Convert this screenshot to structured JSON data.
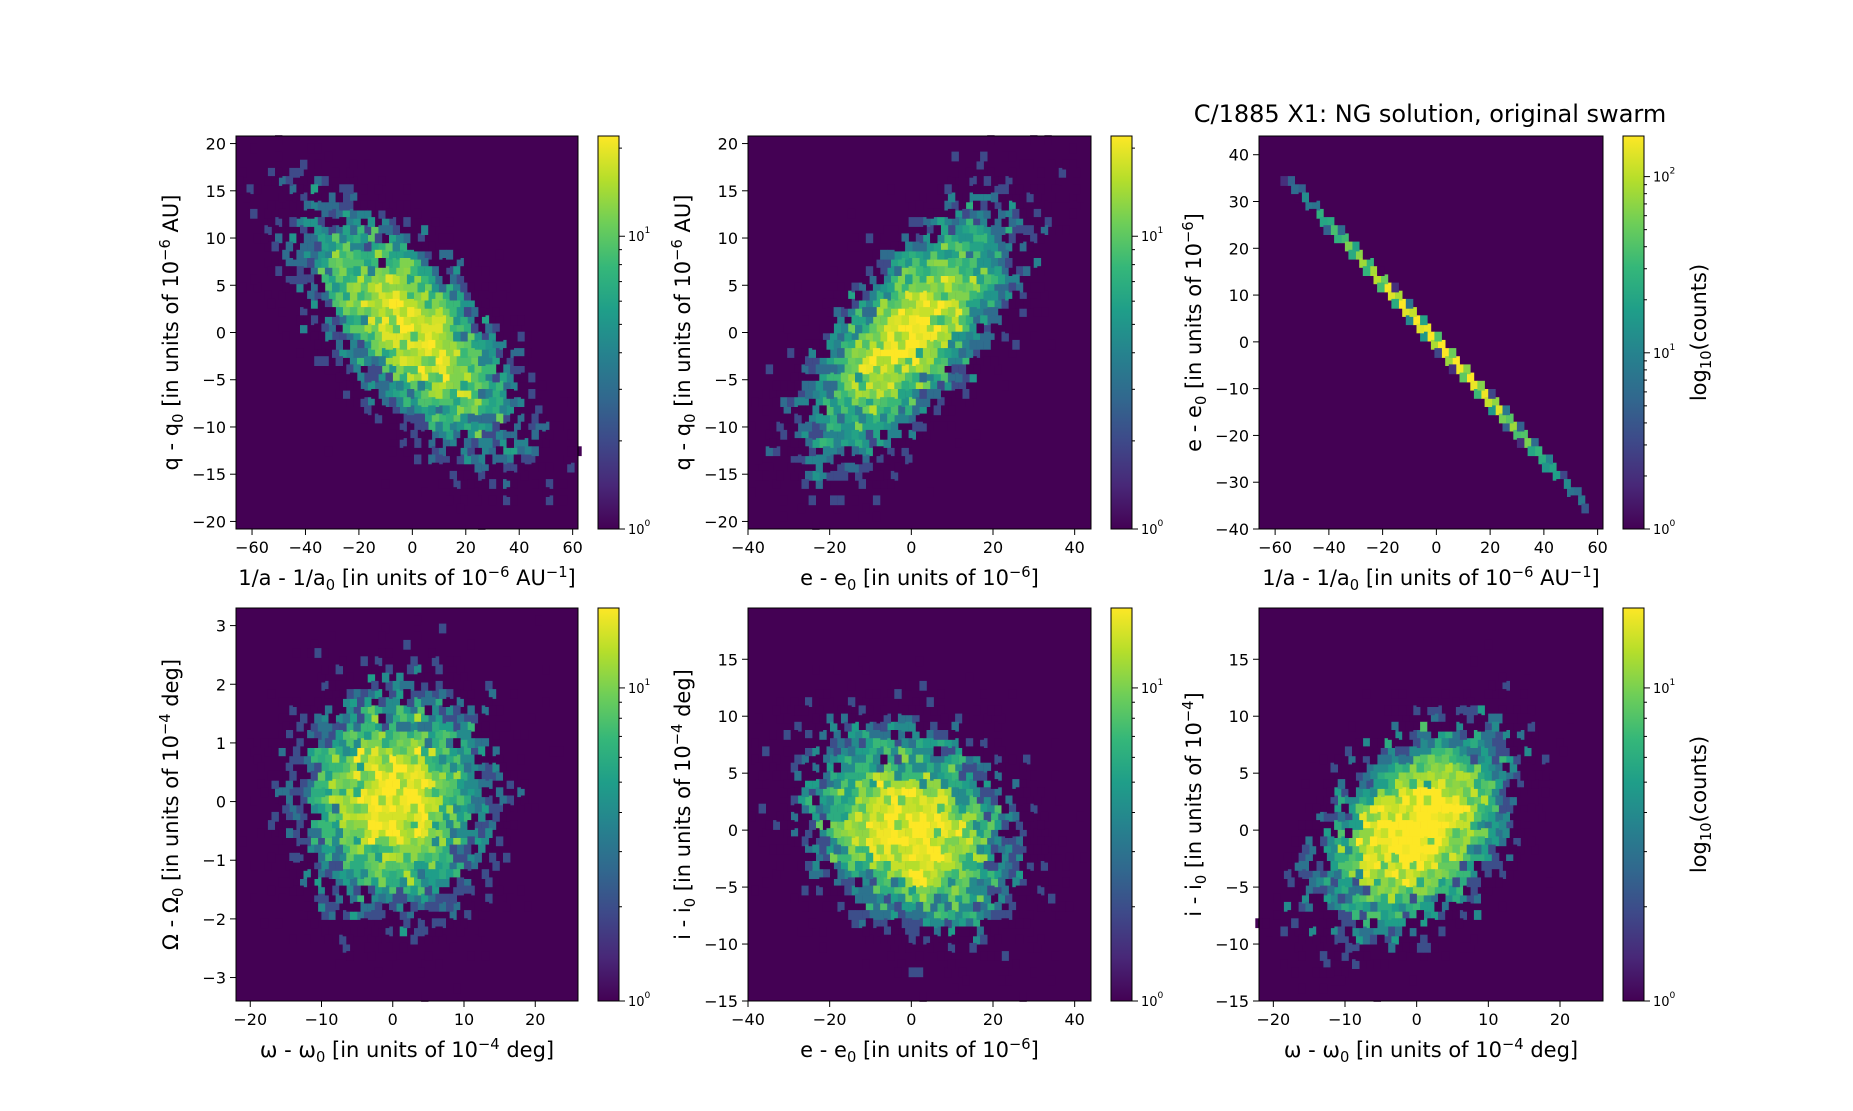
{
  "figure": {
    "title": "C/1885 X1:  NG solution, original swarm",
    "colorbar_label": "log10(counts)"
  },
  "colors": {
    "background": "#440154",
    "cmap": [
      "#440154",
      "#482878",
      "#3e4989",
      "#31688e",
      "#26828e",
      "#1f9e89",
      "#35b779",
      "#6ece58",
      "#b5de2b",
      "#fde725"
    ]
  },
  "chart_data": [
    {
      "type": "heatmap",
      "name": "q_vs_inv_a",
      "xlabel": "1/a - 1/a0 [in units of 10^-6 AU^-1]",
      "ylabel": "q - q0 [in units of 10^-6 AU]",
      "xlim": [
        -66,
        62
      ],
      "ylim": [
        -20.8,
        20.8
      ],
      "xticks": [
        -60,
        -40,
        -20,
        0,
        20,
        40,
        60
      ],
      "yticks": [
        -20,
        -15,
        -10,
        -5,
        0,
        5,
        10,
        15,
        20
      ],
      "distribution": {
        "sx": 20,
        "sy": 6.5,
        "rho": -0.7,
        "n": 5000
      },
      "colorbar": {
        "min": 1,
        "max": 22,
        "ticks": [
          1,
          10
        ],
        "tick_labels": [
          "10^0",
          "10^1"
        ],
        "label": ""
      }
    },
    {
      "type": "heatmap",
      "name": "q_vs_e",
      "xlabel": "e - e0 [in units of 10^-6]",
      "ylabel": "q - q0 [in units of 10^-6 AU]",
      "xlim": [
        -40,
        44
      ],
      "ylim": [
        -20.8,
        20.8
      ],
      "xticks": [
        -40,
        -20,
        0,
        20,
        40
      ],
      "yticks": [
        -20,
        -15,
        -10,
        -5,
        0,
        5,
        10,
        15,
        20
      ],
      "distribution": {
        "sx": 12.5,
        "sy": 6.5,
        "rho": 0.7,
        "n": 5000
      },
      "colorbar": {
        "min": 1,
        "max": 22,
        "ticks": [
          1,
          10
        ],
        "tick_labels": [
          "10^0",
          "10^1"
        ],
        "label": ""
      }
    },
    {
      "type": "heatmap",
      "name": "e_vs_inv_a",
      "xlabel": "1/a - 1/a0 [in units of 10^-6 AU^-1]",
      "ylabel": "e - e0 [in units of 10^-6]",
      "xlim": [
        -66,
        62
      ],
      "ylim": [
        -40,
        44
      ],
      "xticks": [
        -60,
        -40,
        -20,
        0,
        20,
        40,
        60
      ],
      "yticks": [
        -40,
        -30,
        -20,
        -10,
        0,
        10,
        20,
        30,
        40
      ],
      "line": {
        "x_from": -56,
        "x_to": 56,
        "slope": -0.63,
        "sx": 20,
        "n": 5000
      },
      "colorbar": {
        "min": 1,
        "max": 170,
        "ticks": [
          1,
          10,
          100
        ],
        "tick_labels": [
          "10^0",
          "10^1",
          "10^2"
        ],
        "label": "log10(counts)"
      }
    },
    {
      "type": "heatmap",
      "name": "node_vs_peri",
      "xlabel": "ω - ω0 [in units of 10^-4 deg]",
      "ylabel": "Ω - Ω0 [in units of 10^-4 deg]",
      "xlim": [
        -22,
        26
      ],
      "ylim": [
        -3.4,
        3.3
      ],
      "xticks": [
        -20,
        -10,
        0,
        10,
        20
      ],
      "yticks": [
        -3,
        -2,
        -1,
        0,
        1,
        2,
        3
      ],
      "distribution": {
        "sx": 6.5,
        "sy": 0.95,
        "rho": 0.0,
        "n": 5000
      },
      "colorbar": {
        "min": 1,
        "max": 18,
        "ticks": [
          1,
          10
        ],
        "tick_labels": [
          "10^0",
          "10^1"
        ],
        "label": ""
      }
    },
    {
      "type": "heatmap",
      "name": "inc_vs_e",
      "xlabel": "e - e0 [in units of 10^-6]",
      "ylabel": "i - i0 [in units of 10^-4 deg]",
      "xlim": [
        -40,
        44
      ],
      "ylim": [
        -15,
        19.5
      ],
      "xticks": [
        -40,
        -20,
        0,
        20,
        40
      ],
      "yticks": [
        -15,
        -10,
        -5,
        0,
        5,
        10,
        15
      ],
      "distribution": {
        "sx": 12.5,
        "sy": 4.3,
        "rho": -0.25,
        "n": 5000
      },
      "colorbar": {
        "min": 1,
        "max": 18,
        "ticks": [
          1,
          10
        ],
        "tick_labels": [
          "10^0",
          "10^1"
        ],
        "label": ""
      }
    },
    {
      "type": "heatmap",
      "name": "inc_vs_peri",
      "xlabel": "ω - ω0 [in units of 10^-4 deg]",
      "ylabel": "i - i0 [in units of 10^-4]",
      "xlim": [
        -22,
        26
      ],
      "ylim": [
        -15,
        19.5
      ],
      "xticks": [
        -20,
        -10,
        0,
        10,
        20
      ],
      "yticks": [
        -15,
        -10,
        -5,
        0,
        5,
        10,
        15
      ],
      "distribution": {
        "sx": 6.5,
        "sy": 4.3,
        "rho": 0.4,
        "n": 5000
      },
      "colorbar": {
        "min": 1,
        "max": 18,
        "ticks": [
          1,
          10
        ],
        "tick_labels": [
          "10^0",
          "10^1"
        ],
        "label": "log10(counts)"
      }
    }
  ]
}
